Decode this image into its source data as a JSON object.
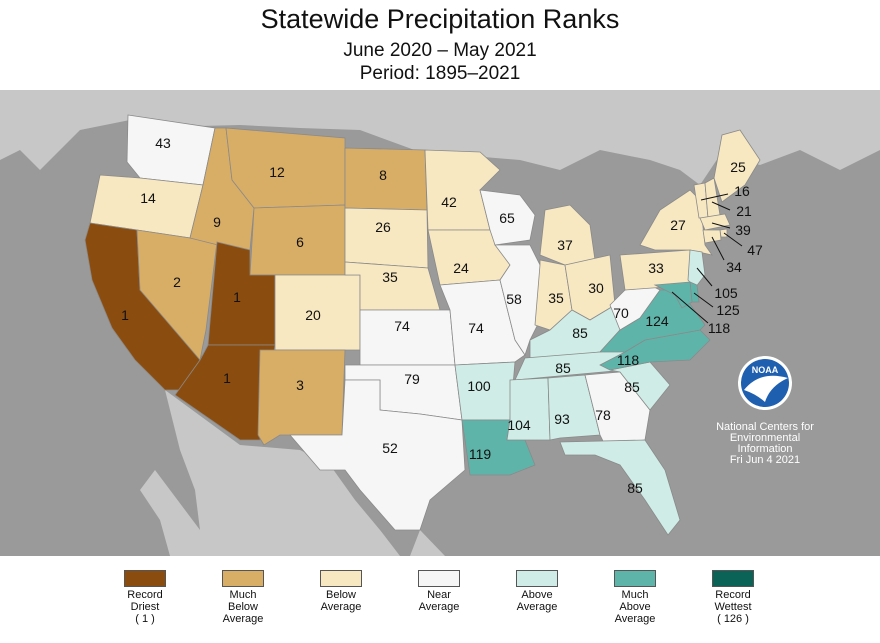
{
  "title": "Statewide Precipitation Ranks",
  "subtitle_period": "June 2020 – May 2021",
  "subtitle_base": "Period: 1895–2021",
  "credit": {
    "logo_text": "NOAA",
    "lines": [
      "National Centers for",
      "Environmental",
      "Information",
      "Fri Jun  4 2021"
    ]
  },
  "colors": {
    "record_driest": "#8b4d0f",
    "much_below": "#d8ad66",
    "below": "#f7e8c2",
    "near": "#f6f6f6",
    "above": "#cfece6",
    "much_above": "#5fb4aa",
    "record_wettest": "#0a6356",
    "ocean": "#9a9a9a",
    "land": "#c7c7c7"
  },
  "states": [
    {
      "id": "WA",
      "rank": "43",
      "cat": "near"
    },
    {
      "id": "OR",
      "rank": "14",
      "cat": "below"
    },
    {
      "id": "CA",
      "rank": "1",
      "cat": "record_driest"
    },
    {
      "id": "NV",
      "rank": "2",
      "cat": "much_below"
    },
    {
      "id": "ID",
      "rank": "9",
      "cat": "much_below"
    },
    {
      "id": "MT",
      "rank": "12",
      "cat": "much_below"
    },
    {
      "id": "WY",
      "rank": "6",
      "cat": "much_below"
    },
    {
      "id": "UT",
      "rank": "1",
      "cat": "record_driest"
    },
    {
      "id": "AZ",
      "rank": "1",
      "cat": "record_driest"
    },
    {
      "id": "CO",
      "rank": "20",
      "cat": "below"
    },
    {
      "id": "NM",
      "rank": "3",
      "cat": "much_below"
    },
    {
      "id": "ND",
      "rank": "8",
      "cat": "much_below"
    },
    {
      "id": "SD",
      "rank": "26",
      "cat": "below"
    },
    {
      "id": "NE",
      "rank": "35",
      "cat": "below"
    },
    {
      "id": "KS",
      "rank": "74",
      "cat": "near"
    },
    {
      "id": "OK",
      "rank": "79",
      "cat": "near"
    },
    {
      "id": "TX",
      "rank": "52",
      "cat": "near"
    },
    {
      "id": "MN",
      "rank": "42",
      "cat": "below"
    },
    {
      "id": "IA",
      "rank": "24",
      "cat": "below"
    },
    {
      "id": "MO",
      "rank": "74",
      "cat": "near"
    },
    {
      "id": "AR",
      "rank": "100",
      "cat": "above"
    },
    {
      "id": "LA",
      "rank": "119",
      "cat": "much_above"
    },
    {
      "id": "WI",
      "rank": "65",
      "cat": "near"
    },
    {
      "id": "IL",
      "rank": "58",
      "cat": "near"
    },
    {
      "id": "MI",
      "rank": "37",
      "cat": "below"
    },
    {
      "id": "IN",
      "rank": "35",
      "cat": "below"
    },
    {
      "id": "OH",
      "rank": "30",
      "cat": "below"
    },
    {
      "id": "KY",
      "rank": "85",
      "cat": "above"
    },
    {
      "id": "TN",
      "rank": "85",
      "cat": "above"
    },
    {
      "id": "MS",
      "rank": "104",
      "cat": "above"
    },
    {
      "id": "AL",
      "rank": "93",
      "cat": "above"
    },
    {
      "id": "GA",
      "rank": "78",
      "cat": "near"
    },
    {
      "id": "FL",
      "rank": "85",
      "cat": "above"
    },
    {
      "id": "SC",
      "rank": "85",
      "cat": "above"
    },
    {
      "id": "NC",
      "rank": "118",
      "cat": "much_above"
    },
    {
      "id": "VA",
      "rank": "124",
      "cat": "much_above"
    },
    {
      "id": "WV",
      "rank": "70",
      "cat": "near"
    },
    {
      "id": "PA",
      "rank": "33",
      "cat": "below"
    },
    {
      "id": "NY",
      "rank": "27",
      "cat": "below"
    },
    {
      "id": "VT",
      "rank": "16",
      "cat": "below"
    },
    {
      "id": "NH",
      "rank": "21",
      "cat": "below"
    },
    {
      "id": "ME",
      "rank": "25",
      "cat": "below"
    },
    {
      "id": "MA",
      "rank": "39",
      "cat": "below"
    },
    {
      "id": "RI",
      "rank": "47",
      "cat": "below"
    },
    {
      "id": "CT",
      "rank": "34",
      "cat": "below"
    },
    {
      "id": "NJ",
      "rank": "105",
      "cat": "above"
    },
    {
      "id": "DE",
      "rank": "125",
      "cat": "much_above"
    },
    {
      "id": "MD",
      "rank": "118",
      "cat": "much_above"
    }
  ],
  "legend": [
    {
      "cat": "record_driest",
      "label": [
        "Record",
        "Driest",
        "( 1 )"
      ]
    },
    {
      "cat": "much_below",
      "label": [
        "Much",
        "Below",
        "Average"
      ]
    },
    {
      "cat": "below",
      "label": [
        "Below",
        "Average"
      ]
    },
    {
      "cat": "near",
      "label": [
        "Near",
        "Average"
      ]
    },
    {
      "cat": "above",
      "label": [
        "Above",
        "Average"
      ]
    },
    {
      "cat": "much_above",
      "label": [
        "Much",
        "Above",
        "Average"
      ]
    },
    {
      "cat": "record_wettest",
      "label": [
        "Record",
        "Wettest",
        "( 126 )"
      ]
    }
  ]
}
